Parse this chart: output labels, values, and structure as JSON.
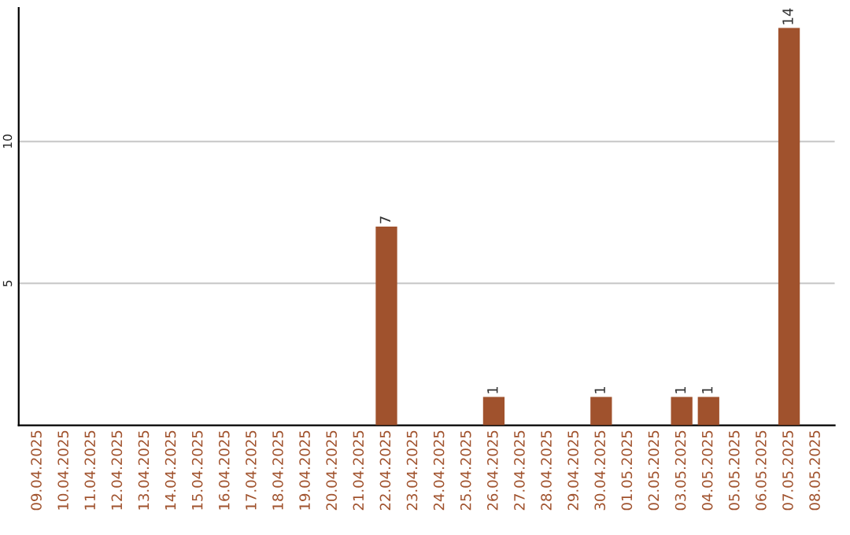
{
  "chart_data": {
    "type": "bar",
    "categories": [
      "09.04.2025",
      "10.04.2025",
      "11.04.2025",
      "12.04.2025",
      "13.04.2025",
      "14.04.2025",
      "15.04.2025",
      "16.04.2025",
      "17.04.2025",
      "18.04.2025",
      "19.04.2025",
      "20.04.2025",
      "21.04.2025",
      "22.04.2025",
      "23.04.2025",
      "24.04.2025",
      "25.04.2025",
      "26.04.2025",
      "27.04.2025",
      "28.04.2025",
      "29.04.2025",
      "30.04.2025",
      "01.05.2025",
      "02.05.2025",
      "03.05.2025",
      "04.05.2025",
      "05.05.2025",
      "06.05.2025",
      "07.05.2025",
      "08.05.2025"
    ],
    "values": [
      null,
      null,
      null,
      null,
      null,
      null,
      null,
      null,
      null,
      null,
      null,
      null,
      null,
      7,
      null,
      null,
      null,
      1,
      null,
      null,
      null,
      1,
      null,
      null,
      1,
      1,
      null,
      null,
      14,
      null
    ],
    "data_labels": true,
    "color": "#a0522d",
    "ylim": [
      0,
      14.7
    ],
    "yticks": [
      5,
      10
    ],
    "grid": "y"
  }
}
